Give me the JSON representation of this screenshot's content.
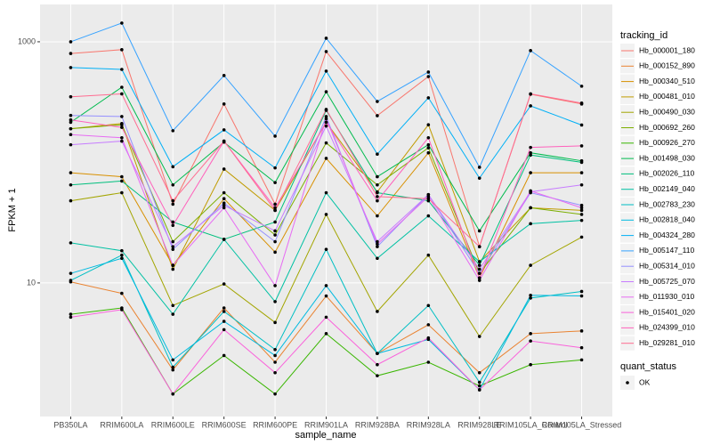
{
  "chart_data": {
    "type": "line",
    "y_label": "FPKM + 1",
    "x_label": "sample_name",
    "log_y": true,
    "grid": true,
    "categories": [
      "PB350LA",
      "RRIM600LA",
      "RRIM600LE",
      "RRIM600SE",
      "RRIM600PE",
      "RRIM901LA",
      "RRIM928BA",
      "RRIM928LA",
      "RRIM928LE",
      "RRIM105LA_Control",
      "RRIM105LA_Stressed"
    ],
    "ylim": [
      0.78,
      2040
    ],
    "yticks": [
      10,
      1000
    ],
    "legend_title": "tracking_id",
    "legend_position": "right",
    "point_legend_title": "quant_status",
    "point_legend_label": "OK",
    "point_color": "#000000",
    "series": [
      {
        "name": "Hb_000001_180",
        "color": "#F8766D",
        "values": [
          800,
          860,
          45,
          305,
          45,
          830,
          244,
          515,
          20,
          367,
          305
        ]
      },
      {
        "name": "Hb_000152_890",
        "color": "#EA8331",
        "values": [
          10.2,
          8.2,
          1.9,
          6.2,
          2.2,
          7.8,
          2.6,
          4.5,
          1.8,
          3.8,
          4.0
        ]
      },
      {
        "name": "Hb_000340_510",
        "color": "#D89000",
        "values": [
          82,
          76,
          14,
          50,
          18,
          108,
          36,
          120,
          11,
          82,
          82
        ]
      },
      {
        "name": "Hb_000481_010",
        "color": "#C09B00",
        "values": [
          190,
          210,
          13,
          88,
          40,
          215,
          57,
          205,
          15,
          42,
          40
        ]
      },
      {
        "name": "Hb_000490_030",
        "color": "#A3A500",
        "values": [
          48,
          56,
          6.5,
          9.8,
          4.7,
          37,
          5.8,
          17,
          3.6,
          14,
          24
        ]
      },
      {
        "name": "Hb_000692_260",
        "color": "#7CAE00",
        "values": [
          190,
          205,
          22,
          56,
          25,
          145,
          65,
          132,
          12,
          42,
          37
        ]
      },
      {
        "name": "Hb_000926_270",
        "color": "#39B600",
        "values": [
          5.5,
          6.2,
          1.2,
          2.5,
          1.2,
          3.8,
          1.7,
          2.2,
          1.4,
          2.1,
          2.3
        ]
      },
      {
        "name": "Hb_001498_030",
        "color": "#00BB4E",
        "values": [
          215,
          420,
          65,
          147,
          68,
          385,
          76,
          140,
          27,
          120,
          103
        ]
      },
      {
        "name": "Hb_002026_110",
        "color": "#00BF7D",
        "values": [
          65,
          70,
          32,
          23,
          32,
          270,
          56,
          48,
          14,
          115,
          100
        ]
      },
      {
        "name": "Hb_002149_040",
        "color": "#00C1A3",
        "values": [
          21.5,
          18.5,
          5.5,
          23,
          7,
          56,
          16,
          36,
          15,
          31,
          33
        ]
      },
      {
        "name": "Hb_002783_230",
        "color": "#00BFC4",
        "values": [
          10.5,
          17,
          2.0,
          5.8,
          2.8,
          19,
          2.6,
          6.5,
          1.5,
          7.5,
          8.5
        ]
      },
      {
        "name": "Hb_002818_040",
        "color": "#00BAE0",
        "values": [
          12,
          16,
          2.3,
          4.8,
          2.5,
          9.5,
          2.6,
          3.4,
          1.3,
          7.9,
          7.8
        ]
      },
      {
        "name": "Hb_004324_280",
        "color": "#00B0F6",
        "values": [
          611,
          590,
          92,
          186,
          90,
          571,
          117,
          343,
          74,
          294,
          204
        ]
      },
      {
        "name": "Hb_005147_110",
        "color": "#35A2FF",
        "values": [
          1000,
          1430,
          183,
          525,
          165,
          1070,
          320,
          561,
          91,
          845,
          428
        ]
      },
      {
        "name": "Hb_005314_010",
        "color": "#9590FF",
        "values": [
          245,
          240,
          19,
          46,
          22,
          240,
          20,
          54,
          12,
          56,
          44
        ]
      },
      {
        "name": "Hb_005725_070",
        "color": "#C77CFF",
        "values": [
          140,
          150,
          20,
          44,
          27,
          200,
          22,
          54,
          13,
          57,
          65
        ]
      },
      {
        "name": "Hb_011930_010",
        "color": "#E76BF3",
        "values": [
          170,
          160,
          14,
          42,
          9.5,
          230,
          21,
          52,
          10.5,
          58,
          42
        ]
      },
      {
        "name": "Hb_015401_020",
        "color": "#FA62DB",
        "values": [
          5.2,
          6.0,
          1.2,
          4.1,
          1.8,
          5.2,
          2.1,
          3.5,
          1.3,
          3.3,
          2.9
        ]
      },
      {
        "name": "Hb_024399_010",
        "color": "#FF62BC",
        "values": [
          225,
          195,
          30,
          150,
          42,
          215,
          48,
          160,
          11,
          133,
          137
        ]
      },
      {
        "name": "Hb_029281_010",
        "color": "#FF6C91",
        "values": [
          350,
          370,
          48,
          150,
          40,
          275,
          52,
          50,
          20,
          370,
          310
        ]
      }
    ]
  }
}
